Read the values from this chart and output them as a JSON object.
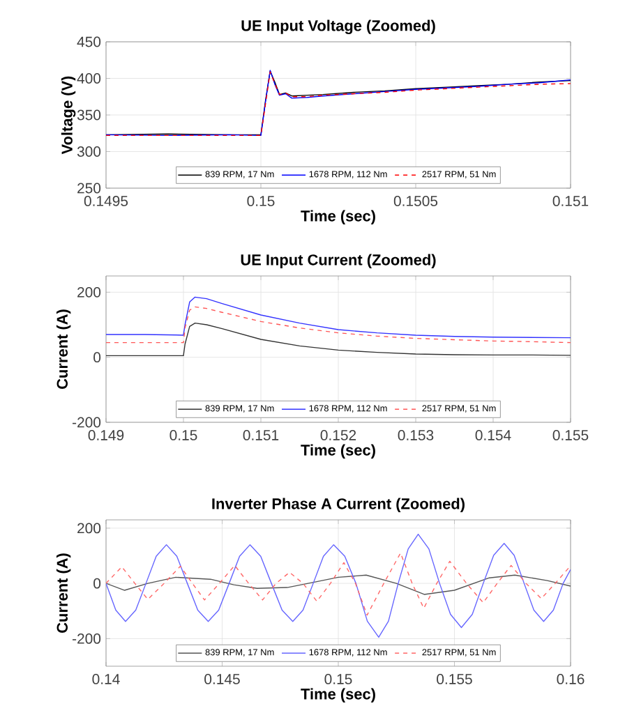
{
  "chart_data": [
    {
      "type": "line",
      "title": "UE Input Voltage (Zoomed)",
      "xlabel": "Time (sec)",
      "ylabel": "Voltage (V)",
      "xlim": [
        0.1495,
        0.151
      ],
      "xticks": [
        0.1495,
        0.15,
        0.1505,
        0.151
      ],
      "ylim": [
        250,
        450
      ],
      "yticks": [
        250,
        300,
        350,
        400,
        450
      ],
      "grid": true,
      "legend": "bottom",
      "marker": "none",
      "x": [
        0.1495,
        0.1497,
        0.1499,
        0.15,
        0.150015,
        0.15003,
        0.150045,
        0.15006,
        0.15008,
        0.1501,
        0.15015,
        0.1502,
        0.1503,
        0.1504,
        0.1505,
        0.1506,
        0.1507,
        0.1508,
        0.1509,
        0.151
      ],
      "series": [
        {
          "name": "839 RPM, 17 Nm",
          "color": "#000000",
          "line_style": "solid",
          "values": [
            323,
            324,
            323,
            323,
            370,
            410,
            395,
            378,
            380,
            376,
            377,
            378,
            381,
            383,
            386,
            388,
            390,
            392,
            395,
            397
          ]
        },
        {
          "name": "1678 RPM, 112 Nm",
          "color": "#0000ff",
          "line_style": "solid",
          "values": [
            323,
            322,
            323,
            322,
            368,
            411,
            392,
            377,
            379,
            373,
            374,
            376,
            379,
            382,
            385,
            387,
            389,
            392,
            394,
            398
          ]
        },
        {
          "name": "2517 RPM, 51 Nm",
          "color": "#ff0000",
          "line_style": "dashed",
          "values": [
            322,
            322,
            322,
            322,
            365,
            409,
            393,
            378,
            380,
            375,
            375,
            377,
            379,
            381,
            384,
            386,
            388,
            390,
            392,
            393
          ]
        }
      ]
    },
    {
      "type": "line",
      "title": "UE Input Current (Zoomed)",
      "xlabel": "Time (sec)",
      "ylabel": "Current (A)",
      "xlim": [
        0.149,
        0.155
      ],
      "xticks": [
        0.149,
        0.15,
        0.151,
        0.152,
        0.153,
        0.154,
        0.155
      ],
      "ylim": [
        -200,
        250
      ],
      "yticks": [
        -200,
        0,
        200
      ],
      "grid": true,
      "legend": "bottom",
      "marker": "none",
      "x": [
        0.149,
        0.1495,
        0.15,
        0.15002,
        0.15008,
        0.15015,
        0.1503,
        0.1505,
        0.151,
        0.1515,
        0.152,
        0.1525,
        0.153,
        0.1535,
        0.154,
        0.1545,
        0.155
      ],
      "series": [
        {
          "name": "839 RPM, 17 Nm",
          "color": "#333333",
          "line_style": "solid",
          "values": [
            5,
            5,
            5,
            40,
            95,
            105,
            100,
            88,
            55,
            35,
            22,
            15,
            10,
            8,
            7,
            7,
            6
          ]
        },
        {
          "name": "1678 RPM, 112 Nm",
          "color": "#3333ff",
          "line_style": "solid",
          "values": [
            70,
            70,
            68,
            100,
            170,
            185,
            180,
            165,
            130,
            105,
            85,
            75,
            68,
            64,
            62,
            61,
            60
          ]
        },
        {
          "name": "2517 RPM, 51 Nm",
          "color": "#ff5555",
          "line_style": "dashed",
          "values": [
            45,
            45,
            45,
            90,
            145,
            155,
            150,
            138,
            110,
            90,
            75,
            65,
            58,
            54,
            50,
            48,
            45
          ]
        }
      ]
    },
    {
      "type": "line",
      "title": "Inverter Phase A Current (Zoomed)",
      "xlabel": "Time (sec)",
      "ylabel": "Current (A)",
      "xlim": [
        0.14,
        0.16
      ],
      "xticks": [
        0.14,
        0.145,
        0.15,
        0.155,
        0.16
      ],
      "ylim": [
        -300,
        230
      ],
      "yticks": [
        -200,
        0,
        200
      ],
      "grid": true,
      "legend": "bottom",
      "marker": "none",
      "series": [
        {
          "name": "839 RPM, 17 Nm",
          "color": "#555555",
          "line_style": "solid",
          "x": [
            0.14,
            0.1408,
            0.1418,
            0.143,
            0.1445,
            0.1455,
            0.1465,
            0.1478,
            0.149,
            0.15,
            0.1512,
            0.1525,
            0.1537,
            0.155,
            0.1565,
            0.1576,
            0.159,
            0.16
          ],
          "values": [
            0,
            -25,
            0,
            22,
            15,
            -5,
            -18,
            -15,
            5,
            22,
            30,
            0,
            -40,
            -25,
            20,
            30,
            10,
            -10
          ]
        },
        {
          "name": "1678 RPM, 112 Nm",
          "color": "#6666ff",
          "line_style": "solid",
          "x": [
            0.14,
            0.14042,
            0.14084,
            0.14128,
            0.14172,
            0.14216,
            0.1426,
            0.14305,
            0.1435,
            0.14395,
            0.1444,
            0.14485,
            0.1453,
            0.14575,
            0.1462,
            0.14666,
            0.14712,
            0.14758,
            0.14804,
            0.14848,
            0.14892,
            0.14936,
            0.1498,
            0.15028,
            0.15076,
            0.15125,
            0.15174,
            0.15216,
            0.15258,
            0.15301,
            0.15344,
            0.1539,
            0.15436,
            0.15483,
            0.1553,
            0.15577,
            0.15624,
            0.15669,
            0.15714,
            0.15757,
            0.158,
            0.15842,
            0.15884,
            0.15926,
            0.15968,
            0.16
          ],
          "values": [
            0,
            -97,
            -138,
            -97,
            0,
            98,
            140,
            98,
            0,
            -97,
            -138,
            -97,
            0,
            98,
            140,
            98,
            0,
            -97,
            -138,
            -97,
            0,
            98,
            140,
            98,
            0,
            -137,
            -195,
            -137,
            0,
            125,
            178,
            125,
            0,
            -112,
            -160,
            -112,
            0,
            102,
            145,
            102,
            0,
            -97,
            -138,
            -97,
            0,
            50
          ]
        },
        {
          "name": "2517 RPM, 51 Nm",
          "color": "#ff6666",
          "line_style": "dashed",
          "x": [
            0.14,
            0.14068,
            0.14124,
            0.1418,
            0.1425,
            0.1432,
            0.14372,
            0.14424,
            0.14488,
            0.14554,
            0.14614,
            0.14674,
            0.14732,
            0.1479,
            0.14848,
            0.14908,
            0.14966,
            0.15024,
            0.15074,
            0.15124,
            0.15196,
            0.15268,
            0.15318,
            0.15368,
            0.15424,
            0.1548,
            0.15552,
            0.15624,
            0.15684,
            0.15744,
            0.15808,
            0.15874,
            0.15934,
            0.15994
          ],
          "values": [
            0,
            60,
            0,
            -58,
            0,
            62,
            0,
            -60,
            0,
            65,
            0,
            -60,
            0,
            40,
            0,
            -65,
            0,
            75,
            0,
            -115,
            0,
            110,
            0,
            -90,
            0,
            80,
            0,
            -70,
            0,
            65,
            0,
            -55,
            0,
            58
          ]
        }
      ]
    }
  ]
}
